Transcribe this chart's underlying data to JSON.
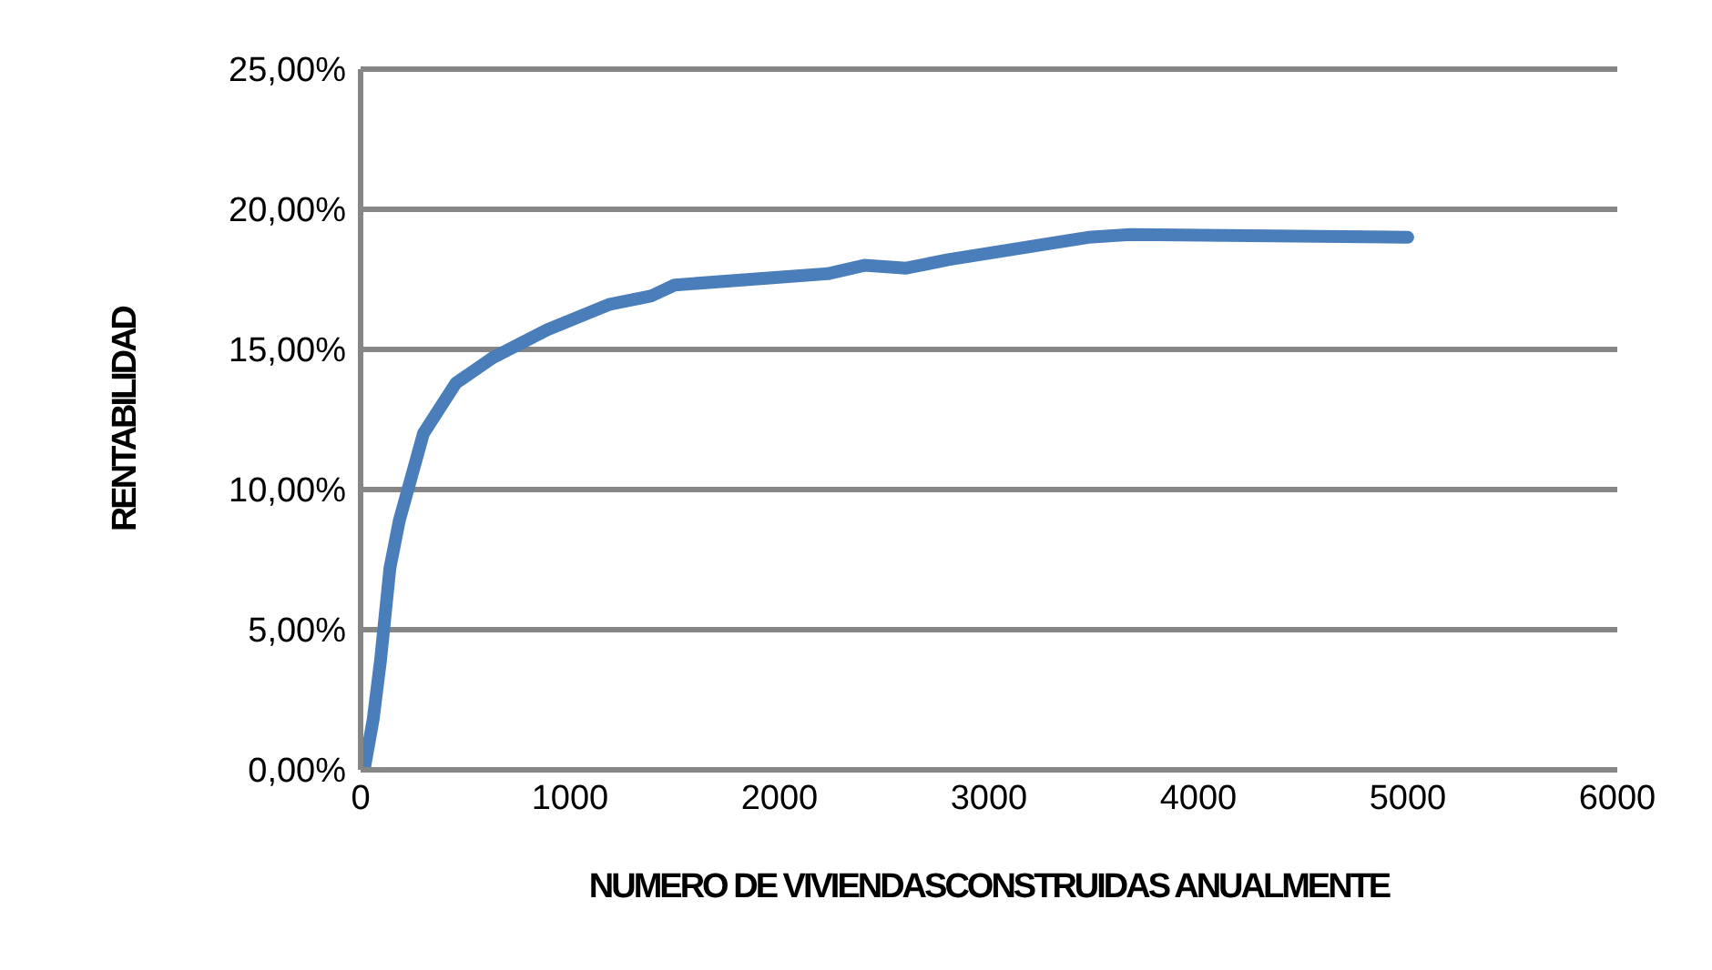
{
  "chart_data": {
    "type": "line",
    "xlabel": "NUMERO DE VIVIENDASCONSTRUIDAS ANUALMENTE",
    "ylabel": "RENTABILIDAD",
    "x": [
      17,
      60,
      95,
      140,
      185,
      300,
      455,
      630,
      890,
      1185,
      1385,
      1500,
      2230,
      2405,
      2605,
      2805,
      3475,
      3675,
      5000
    ],
    "series": [
      {
        "color": "#4a7ebb",
        "values": [
          0,
          1.8,
          3.9,
          7.2,
          8.9,
          12.0,
          13.8,
          14.7,
          15.7,
          16.6,
          16.9,
          17.3,
          17.7,
          18.0,
          17.9,
          18.2,
          19.0,
          19.1,
          19.0
        ]
      }
    ],
    "xlim": [
      0,
      6000
    ],
    "xticks": [
      0,
      1000,
      2000,
      3000,
      4000,
      5000,
      6000
    ],
    "ylim": [
      0,
      25
    ],
    "yticks": [
      {
        "value": 0,
        "label": "0,00%"
      },
      {
        "value": 5,
        "label": "5,00%"
      },
      {
        "value": 10,
        "label": "10,00%"
      },
      {
        "value": 15,
        "label": "15,00%"
      },
      {
        "value": 20,
        "label": "20,00%"
      },
      {
        "value": 25,
        "label": "25,00%"
      }
    ],
    "grid": "y",
    "legend": false,
    "marker": "none",
    "line_style": "solid"
  }
}
